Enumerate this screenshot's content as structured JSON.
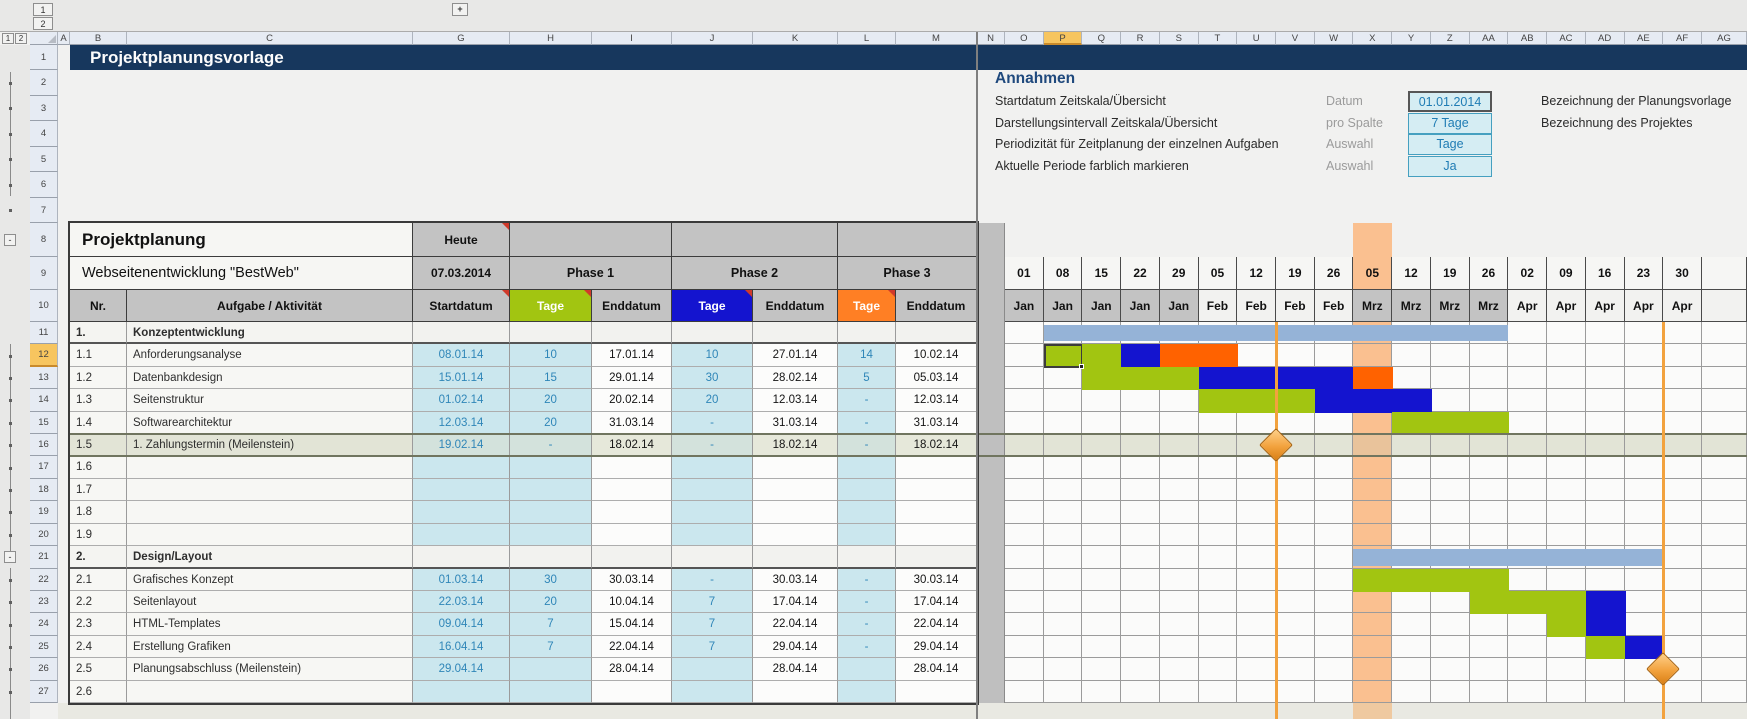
{
  "title": "Projektplanungsvorlage",
  "window": {
    "col_outline_level1": "1",
    "col_outline_level2": "2",
    "expand_columns": "+",
    "row_outline_level1": "1",
    "row_outline_level2": "2",
    "group_collapse": "-"
  },
  "sheet": {
    "column_letters": [
      "A",
      "B",
      "C",
      "G",
      "H",
      "I",
      "J",
      "K",
      "L",
      "M",
      "N",
      "O",
      "P",
      "Q",
      "R",
      "S",
      "T",
      "U",
      "V",
      "W",
      "X",
      "Y",
      "Z",
      "AA",
      "AB",
      "AC",
      "AD",
      "AE",
      "AF",
      "AG"
    ],
    "selected_column": "P",
    "row_numbers": [
      "1",
      "2",
      "3",
      "4",
      "5",
      "6",
      "7",
      "8",
      "9",
      "10",
      "11",
      "12",
      "13",
      "14",
      "15",
      "16",
      "17",
      "18",
      "19",
      "20",
      "21",
      "22",
      "23",
      "24",
      "25",
      "26",
      "27"
    ],
    "selected_row": "12"
  },
  "assumptions": {
    "heading": "Annahmen",
    "items": [
      {
        "label": "Startdatum Zeitskala/Übersicht",
        "key": "Datum",
        "value": "01.01.2014",
        "selected": true
      },
      {
        "label": "Darstellungsintervall Zeitskala/Übersicht",
        "key": "pro Spalte",
        "value": "7 Tage",
        "selected": false
      },
      {
        "label": "Periodizität für Zeitplanung der einzelnen Aufgaben",
        "key": "Auswahl",
        "value": "Tage",
        "selected": false
      },
      {
        "label": "Aktuelle Periode farblich markieren",
        "key": "Auswahl",
        "value": "Ja",
        "selected": false
      }
    ],
    "right_labels": [
      "Bezeichnung der Planungsvorlage",
      "Bezeichnung des Projektes"
    ]
  },
  "table": {
    "title": "Projektplanung",
    "subtitle": "Webseitenentwicklung \"BestWeb\"",
    "today_label": "Heute",
    "today_value": "07.03.2014",
    "phases": [
      "Phase 1",
      "Phase 2",
      "Phase 3"
    ],
    "col_headers": [
      "Nr.",
      "Aufgabe / Aktivität",
      "Startdatum",
      "Tage",
      "Enddatum",
      "Tage",
      "Enddatum",
      "Tage",
      "Enddatum"
    ],
    "rows": [
      {
        "nr": "1.",
        "task": "Konzeptentwicklung",
        "type": "section"
      },
      {
        "nr": "1.1",
        "task": "Anforderungsanalyse",
        "start": "08.01.14",
        "t1": "10",
        "e1": "17.01.14",
        "t2": "10",
        "e2": "27.01.14",
        "t3": "14",
        "e3": "10.02.14"
      },
      {
        "nr": "1.2",
        "task": "Datenbankdesign",
        "start": "15.01.14",
        "t1": "15",
        "e1": "29.01.14",
        "t2": "30",
        "e2": "28.02.14",
        "t3": "5",
        "e3": "05.03.14"
      },
      {
        "nr": "1.3",
        "task": "Seitenstruktur",
        "start": "01.02.14",
        "t1": "20",
        "e1": "20.02.14",
        "t2": "20",
        "e2": "12.03.14",
        "t3": "-",
        "e3": "12.03.14"
      },
      {
        "nr": "1.4",
        "task": "Softwarearchitektur",
        "start": "12.03.14",
        "t1": "20",
        "e1": "31.03.14",
        "t2": "-",
        "e2": "31.03.14",
        "t3": "-",
        "e3": "31.03.14"
      },
      {
        "nr": "1.5",
        "task": "1. Zahlungstermin  (Meilenstein)",
        "start": "19.02.14",
        "t1": "-",
        "e1": "18.02.14",
        "t2": "-",
        "e2": "18.02.14",
        "t3": "-",
        "e3": "18.02.14",
        "highlight": true
      },
      {
        "nr": "1.6",
        "type": "empty"
      },
      {
        "nr": "1.7",
        "type": "empty"
      },
      {
        "nr": "1.8",
        "type": "empty"
      },
      {
        "nr": "1.9",
        "type": "empty"
      },
      {
        "nr": "2.",
        "task": "Design/Layout",
        "type": "section"
      },
      {
        "nr": "2.1",
        "task": "Grafisches Konzept",
        "start": "01.03.14",
        "t1": "30",
        "e1": "30.03.14",
        "t2": "-",
        "e2": "30.03.14",
        "t3": "-",
        "e3": "30.03.14"
      },
      {
        "nr": "2.2",
        "task": "Seitenlayout",
        "start": "22.03.14",
        "t1": "20",
        "e1": "10.04.14",
        "t2": "7",
        "e2": "17.04.14",
        "t3": "-",
        "e3": "17.04.14"
      },
      {
        "nr": "2.3",
        "task": "HTML-Templates",
        "start": "09.04.14",
        "t1": "7",
        "e1": "15.04.14",
        "t2": "7",
        "e2": "22.04.14",
        "t3": "-",
        "e3": "22.04.14"
      },
      {
        "nr": "2.4",
        "task": "Erstellung Grafiken",
        "start": "16.04.14",
        "t1": "7",
        "e1": "22.04.14",
        "t2": "7",
        "e2": "29.04.14",
        "t3": "-",
        "e3": "29.04.14"
      },
      {
        "nr": "2.5",
        "task": "Planungsabschluss (Meilenstein)",
        "start": "29.04.14",
        "t1": "",
        "e1": "28.04.14",
        "t2": "",
        "e2": "28.04.14",
        "t3": "",
        "e3": "28.04.14"
      },
      {
        "nr": "2.6",
        "type": "empty"
      }
    ]
  },
  "gantt": {
    "day_labels": [
      "01",
      "08",
      "15",
      "22",
      "29",
      "05",
      "12",
      "19",
      "26",
      "05",
      "12",
      "19",
      "26",
      "02",
      "09",
      "16",
      "23",
      "30"
    ],
    "month_labels": [
      "Jan",
      "Jan",
      "Jan",
      "Jan",
      "Jan",
      "Feb",
      "Feb",
      "Feb",
      "Feb",
      "Mrz",
      "Mrz",
      "Mrz",
      "Mrz",
      "Apr",
      "Apr",
      "Apr",
      "Apr",
      "Apr"
    ],
    "shaded_months": [
      "Jan",
      "Mrz"
    ],
    "highlight_index": 9,
    "bands": [
      {
        "row": 0,
        "c": 1,
        "s": 12
      },
      {
        "row": 10,
        "c": 9,
        "s": 8
      }
    ],
    "bars": {
      "1": [
        {
          "c": 1,
          "s": 1,
          "k": "green",
          "selected": true
        },
        {
          "c": 2,
          "s": 1,
          "k": "green"
        },
        {
          "c": 3,
          "s": 1,
          "k": "blue"
        },
        {
          "c": 4,
          "s": 2,
          "k": "orange"
        }
      ],
      "2": [
        {
          "c": 2,
          "s": 3,
          "k": "green"
        },
        {
          "c": 5,
          "s": 4,
          "k": "blue"
        },
        {
          "c": 9,
          "s": 1,
          "k": "orange"
        }
      ],
      "3": [
        {
          "c": 5,
          "s": 3,
          "k": "green"
        },
        {
          "c": 8,
          "s": 3,
          "k": "blue"
        }
      ],
      "4": [
        {
          "c": 10,
          "s": 3,
          "k": "green"
        }
      ],
      "11": [
        {
          "c": 9,
          "s": 4,
          "k": "green"
        }
      ],
      "12": [
        {
          "c": 12,
          "s": 3,
          "k": "green"
        },
        {
          "c": 15,
          "s": 1,
          "k": "blue"
        }
      ],
      "13": [
        {
          "c": 14,
          "s": 1,
          "k": "green"
        },
        {
          "c": 15,
          "s": 1,
          "k": "blue"
        }
      ],
      "14": [
        {
          "c": 15,
          "s": 1,
          "k": "green"
        },
        {
          "c": 16,
          "s": 1,
          "k": "blue"
        }
      ]
    },
    "milestones": [
      {
        "row": 5,
        "boundary": 7
      },
      {
        "row": 15,
        "boundary": 17
      }
    ]
  },
  "colors": {
    "green": "#A2C511",
    "blue": "#1414CF",
    "orange": "#FF6200",
    "header_orange": "#FF7F24",
    "band": "#95B3D7",
    "period_highlight": "#FAC090",
    "input_cyan": "#CBE7EE",
    "navy": "#17375D",
    "heading_blue": "#1F497D",
    "milestone_line": "#F2A23E",
    "gray_header": "#C3C3C3",
    "cyan_text": "#2F86B8"
  }
}
